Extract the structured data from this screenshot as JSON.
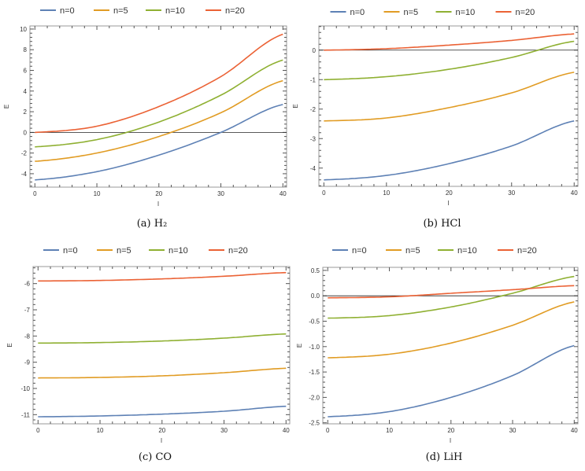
{
  "chart_data": [
    {
      "type": "line",
      "caption": "(a) H₂",
      "xlabel": "l",
      "ylabel": "E",
      "xlim": [
        -0.8,
        40.6
      ],
      "ylim": [
        -5.3,
        10.3
      ],
      "xticks": [
        0,
        10,
        20,
        30,
        40
      ],
      "yticks": [
        -4,
        -2,
        0,
        2,
        4,
        6,
        8,
        10
      ],
      "ytick_labels": [
        "-4",
        "-2",
        "0",
        "2",
        "4",
        "6",
        "8",
        "10"
      ],
      "zero_line": true,
      "legend": "top",
      "x": [
        0,
        10,
        20,
        30,
        40
      ],
      "series": [
        {
          "name": "n=0",
          "color": "#5e81b5",
          "values": [
            -4.6,
            -3.8,
            -2.2,
            0.0,
            2.7
          ]
        },
        {
          "name": "n=5",
          "color": "#e19c24",
          "values": [
            -2.8,
            -2.0,
            -0.4,
            1.9,
            5.0
          ]
        },
        {
          "name": "n=10",
          "color": "#8fb032",
          "values": [
            -1.4,
            -0.7,
            1.0,
            3.6,
            7.0
          ]
        },
        {
          "name": "n=20",
          "color": "#eb6235",
          "values": [
            0.0,
            0.6,
            2.5,
            5.4,
            9.5
          ]
        }
      ]
    },
    {
      "type": "line",
      "caption": "(b) HCl",
      "xlabel": "l",
      "ylabel": "E",
      "xlim": [
        -0.8,
        40.6
      ],
      "ylim": [
        -4.62,
        0.82
      ],
      "xticks": [
        0,
        10,
        20,
        30,
        40
      ],
      "yticks": [
        -4,
        -3,
        -2,
        -1,
        0
      ],
      "ytick_labels": [
        "-4",
        "-3",
        "-2",
        "-1",
        "0"
      ],
      "zero_line": true,
      "legend": "top",
      "x": [
        0,
        10,
        20,
        30,
        40
      ],
      "series": [
        {
          "name": "n=0",
          "color": "#5e81b5",
          "values": [
            -4.4,
            -4.25,
            -3.85,
            -3.25,
            -2.4
          ]
        },
        {
          "name": "n=5",
          "color": "#e19c24",
          "values": [
            -2.4,
            -2.3,
            -1.95,
            -1.45,
            -0.75
          ]
        },
        {
          "name": "n=10",
          "color": "#8fb032",
          "values": [
            -1.0,
            -0.9,
            -0.65,
            -0.25,
            0.3
          ]
        },
        {
          "name": "n=20",
          "color": "#eb6235",
          "values": [
            0.0,
            0.05,
            0.17,
            0.33,
            0.55
          ]
        }
      ]
    },
    {
      "type": "line",
      "caption": "(c) CO",
      "xlabel": "l",
      "ylabel": "E",
      "xlim": [
        -0.8,
        40.6
      ],
      "ylim": [
        -11.35,
        -5.35
      ],
      "xticks": [
        0,
        10,
        20,
        30,
        40
      ],
      "yticks": [
        -11,
        -10,
        -9,
        -8,
        -7,
        -6
      ],
      "ytick_labels": [
        "-11",
        "-10",
        "-9",
        "-8",
        "-7",
        "-6"
      ],
      "zero_line": false,
      "legend": "top",
      "x": [
        0,
        10,
        20,
        30,
        40
      ],
      "series": [
        {
          "name": "n=0",
          "color": "#5e81b5",
          "values": [
            -11.08,
            -11.05,
            -10.98,
            -10.87,
            -10.68
          ]
        },
        {
          "name": "n=5",
          "color": "#e19c24",
          "values": [
            -9.6,
            -9.58,
            -9.52,
            -9.4,
            -9.23
          ]
        },
        {
          "name": "n=10",
          "color": "#8fb032",
          "values": [
            -8.27,
            -8.25,
            -8.19,
            -8.08,
            -7.92
          ]
        },
        {
          "name": "n=20",
          "color": "#eb6235",
          "values": [
            -5.9,
            -5.88,
            -5.82,
            -5.72,
            -5.58
          ]
        }
      ]
    },
    {
      "type": "line",
      "caption": "(d) LiH",
      "xlabel": "l",
      "ylabel": "E",
      "xlim": [
        -0.8,
        40.6
      ],
      "ylim": [
        -2.52,
        0.56
      ],
      "xticks": [
        0,
        10,
        20,
        30,
        40
      ],
      "yticks": [
        -2.5,
        -2.0,
        -1.5,
        -1.0,
        -0.5,
        0.0,
        0.5
      ],
      "ytick_labels": [
        "-2.5",
        "-2.0",
        "-1.5",
        "-1.0",
        "-0.5",
        "0.0",
        "0.5"
      ],
      "zero_line": true,
      "legend": "top",
      "x": [
        0,
        10,
        20,
        30,
        40
      ],
      "series": [
        {
          "name": "n=0",
          "color": "#5e81b5",
          "values": [
            -2.38,
            -2.28,
            -2.0,
            -1.57,
            -0.98
          ]
        },
        {
          "name": "n=5",
          "color": "#e19c24",
          "values": [
            -1.22,
            -1.15,
            -0.93,
            -0.58,
            -0.12
          ]
        },
        {
          "name": "n=10",
          "color": "#8fb032",
          "values": [
            -0.44,
            -0.39,
            -0.22,
            0.05,
            0.38
          ]
        },
        {
          "name": "n=20",
          "color": "#eb6235",
          "values": [
            -0.04,
            -0.02,
            0.05,
            0.12,
            0.2
          ]
        }
      ]
    }
  ]
}
